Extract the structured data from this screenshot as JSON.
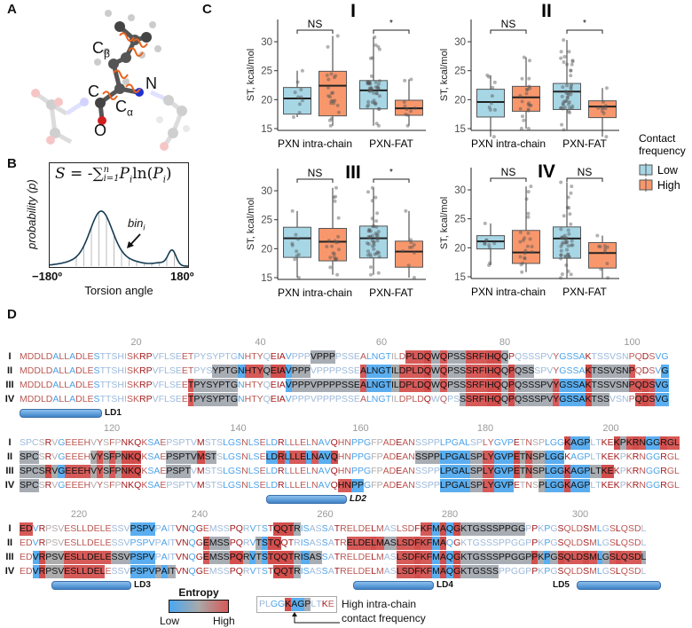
{
  "panel_labels": {
    "a": "A",
    "b": "B",
    "c": "C",
    "d": "D"
  },
  "panel_a": {
    "atoms": {
      "cb": "C",
      "cb_sub": "β",
      "c": "C",
      "ca": "C",
      "ca_sub": "α",
      "n": "N",
      "o": "O"
    },
    "colors": {
      "torsion": "#e8641e",
      "nitrogen": "#2030d0",
      "oxygen": "#d02020"
    }
  },
  "panel_b": {
    "formula": {
      "lhs": "S = -",
      "sum": "∑",
      "upper": "n",
      "lower": "i=1",
      "p1": "P",
      "s1": "i",
      "ln": "ln(",
      "p2": "P",
      "s2": "i",
      "close": ")"
    },
    "ylabel": "probability (p)",
    "xlabel": "Torsion angle",
    "xmin": "−180º",
    "xmax": "180º",
    "bin_label": "bin",
    "bin_sub": "i"
  },
  "chart_data": [
    {
      "type": "box",
      "title": "I",
      "ylabel": "ST, kcal/mol",
      "ylim": [
        14,
        33
      ],
      "yticks": [
        "15",
        "20",
        "25",
        "30"
      ],
      "categories": [
        "PXN intra-chain",
        "PXN-FAT"
      ],
      "significance": [
        "NS",
        "*"
      ],
      "series": [
        {
          "name": "Low",
          "boxes": [
            {
              "min": 17,
              "q1": 17.5,
              "median": 20.2,
              "q3": 22.1,
              "max": 25
            },
            {
              "min": 15.5,
              "q1": 18.4,
              "median": 21.6,
              "q3": 23.3,
              "max": 30.8
            }
          ]
        },
        {
          "name": "High",
          "boxes": [
            {
              "min": 15.5,
              "q1": 17.2,
              "median": 22.4,
              "q3": 24.9,
              "max": 31
            },
            {
              "min": 15.5,
              "q1": 17.3,
              "median": 18.5,
              "q3": 19.9,
              "max": 23.5
            }
          ]
        }
      ]
    },
    {
      "type": "box",
      "title": "II",
      "ylabel": "ST, kcal/mol",
      "ylim": [
        14,
        33
      ],
      "yticks": [
        "15",
        "20",
        "25",
        "30"
      ],
      "categories": [
        "PXN intra-chain",
        "PXN-FAT"
      ],
      "significance": [
        "NS",
        "*"
      ],
      "series": [
        {
          "name": "Low",
          "boxes": [
            {
              "min": 13.6,
              "q1": 17,
              "median": 19.6,
              "q3": 21.8,
              "max": 24.2
            },
            {
              "min": 14.8,
              "q1": 18.3,
              "median": 21.4,
              "q3": 22.8,
              "max": 30.3
            }
          ]
        },
        {
          "name": "High",
          "boxes": [
            {
              "min": 15,
              "q1": 18,
              "median": 20.4,
              "q3": 22.3,
              "max": 27.3
            },
            {
              "min": 13.6,
              "q1": 16.9,
              "median": 18.8,
              "q3": 19.8,
              "max": 22
            }
          ]
        }
      ]
    },
    {
      "type": "box",
      "title": "III",
      "ylabel": "ST, kcal/mol",
      "ylim": [
        14,
        33
      ],
      "yticks": [
        "15",
        "20",
        "25",
        "30"
      ],
      "categories": [
        "PXN intra-chain",
        "PXN-FAT"
      ],
      "significance": [
        "NS",
        "*"
      ],
      "series": [
        {
          "name": "Low",
          "boxes": [
            {
              "min": 15,
              "q1": 18.5,
              "median": 21.8,
              "q3": 23.7,
              "max": 26.5
            },
            {
              "min": 15.5,
              "q1": 18.4,
              "median": 21.8,
              "q3": 23.9,
              "max": 30.5
            }
          ]
        },
        {
          "name": "High",
          "boxes": [
            {
              "min": 15.5,
              "q1": 17.9,
              "median": 21.2,
              "q3": 23.5,
              "max": 30.5
            },
            {
              "min": 15,
              "q1": 16.8,
              "median": 19.5,
              "q3": 21.3,
              "max": 26.5
            }
          ]
        }
      ]
    },
    {
      "type": "box",
      "title": "IV",
      "ylabel": "ST, kcal/mol",
      "ylim": [
        14,
        33
      ],
      "yticks": [
        "15",
        "20",
        "25",
        "30"
      ],
      "categories": [
        "PXN intra-chain",
        "PXN-FAT"
      ],
      "significance": [
        "NS",
        "NS"
      ],
      "series": [
        {
          "name": "Low",
          "boxes": [
            {
              "min": 17,
              "q1": 19.8,
              "median": 21.1,
              "q3": 22.1,
              "max": 24.2
            },
            {
              "min": 14.8,
              "q1": 18.2,
              "median": 21.6,
              "q3": 23.6,
              "max": 31.3
            }
          ]
        },
        {
          "name": "High",
          "boxes": [
            {
              "min": 15.8,
              "q1": 17.3,
              "median": 19.2,
              "q3": 23,
              "max": 30.6
            },
            {
              "min": 14.8,
              "q1": 16.5,
              "median": 19.1,
              "q3": 20.9,
              "max": 22.1
            }
          ]
        }
      ]
    }
  ],
  "legend": {
    "title_line1": "Contact",
    "title_line2": "frequency",
    "items": [
      {
        "label": "Low",
        "color": "#a7d6e5"
      },
      {
        "label": "High",
        "color": "#f8976c"
      }
    ]
  },
  "panel_d": {
    "row_labels": [
      "I",
      "II",
      "III",
      "IV"
    ],
    "entropy_colors": {
      "b": "#4aa2ea",
      "l": "#9db9da",
      "g": "#b3aaaa",
      "r": "#bb5753",
      "R": "#a3181b"
    },
    "blocks": [
      {
        "start": 1,
        "sequence": "MDDLDALLADLESTTSHISKRPVFLSEETPYSYPTGNHTYQEIAVPPPVPPPPSSEALNGTILDPLDQWQPSSSRFIHQQPQSSSPVYGSSAKTSSVSNPQDSVG",
        "entropy": "rrrrrbrrbrrrblllllrrRRlllllrrlllllllbrrrlRRRblllllllllllrbbbbggrrrrRlrlllrrrrRRlRllllllrbbbbRllllllrrRrbbb",
        "ticks": [
          20,
          40,
          60,
          80,
          100
        ],
        "highlights": [
          [
            [
              49,
              52
            ],
            [
              65,
              80
            ]
          ],
          [
            [
              33,
              48
            ],
            [
              57,
              84
            ],
            [
              93,
              100
            ],
            [
              105,
              105
            ]
          ],
          [
            [
              29,
              36
            ],
            [
              45,
              105
            ]
          ],
          [
            [
              29,
              36
            ],
            [
              73,
              96
            ],
            [
              101,
              105
            ]
          ]
        ],
        "helices": [
          {
            "label": "LD1",
            "from": 1,
            "to": 13,
            "label_side": "right",
            "italic": false
          }
        ]
      },
      {
        "start": 106,
        "sequence": "SPCSRVGEEEHVYSFPNKQKSAEPSPTVMSTSLGSNLSELDRLLLELNAVQHNPPGFPADEANSSPPLPGALSPLYGVPETNSPLGGKAGPLTKEKPKRNGGRGL",
        "entropy": "lllgRgbrrrrgrgrgRRRrbbrlllllRlllbbbrbbrbbRbrrrbrbbRrrbbbggrrRrrllllbbbbbllrrbbbRgrggbbbRbbbllRRRlrRrbbRrr",
        "ticks": [
          120,
          140,
          160,
          180,
          200
        ],
        "highlights": [
          [
            [
              88,
              91
            ],
            [
              96,
              105
            ]
          ],
          [
            [
              1,
              3
            ],
            [
              12,
              19
            ],
            [
              24,
              31
            ],
            [
              40,
              51
            ],
            [
              64,
              87
            ]
          ],
          [
            [
              1,
              19
            ],
            [
              24,
              27
            ],
            [
              68,
              95
            ]
          ],
          [
            [
              1,
              3
            ],
            [
              52,
              55
            ],
            [
              68,
              79
            ],
            [
              84,
              91
            ]
          ]
        ],
        "helices": [
          {
            "label": "LD2",
            "from": 145,
            "to": 157,
            "label_side": "right",
            "italic": true
          }
        ]
      },
      {
        "start": 211,
        "sequence": "EDVRPSVESLLDELESSVPSPVPAITVNQGEMSSPQRVTSTQQTRISASSATRELDELMASLSDFKFMAQGKTGSSSPPGGPPKPGSQLDSMLGSLQSDL",
        "entropy": "rrbRgggrrrrrrrrlllbbbblbllRRbRrlllRRlblbRRRRlbbllblRrrrrrRrllrrrRrrbRbRlllllllllllRlblRrrrRrblrRrrr",
        "ticks": [
          220,
          240,
          260,
          280,
          300
        ],
        "highlights": [
          [
            [
              1,
              2
            ],
            [
              19,
              22
            ],
            [
              42,
              45
            ],
            [
              66,
              81
            ]
          ],
          [
            [
              31,
              34
            ],
            [
              39,
              42
            ],
            [
              54,
              69
            ]
          ],
          [
            [
              3,
              22
            ],
            [
              31,
              49
            ],
            [
              62,
              100
            ]
          ],
          [
            [
              3,
              14
            ],
            [
              19,
              26
            ],
            [
              42,
              45
            ],
            [
              62,
              77
            ]
          ]
        ],
        "helices": [
          {
            "label": "LD3",
            "from": 216,
            "to": 228,
            "label_side": "right",
            "italic": false
          },
          {
            "label": "LD4",
            "from": 265,
            "to": 277,
            "label_side": "right",
            "italic": false
          },
          {
            "label": "LD5",
            "from": 300,
            "to": 312,
            "label_side": "left",
            "italic": false
          }
        ]
      }
    ],
    "entropy_legend": {
      "title": "Entropy",
      "low": "Low",
      "high": "High"
    },
    "contact_example": {
      "sequence": "PLGGKAGPLTKE",
      "entropy": "llbbRbblllRr",
      "highlight": [
        5,
        8
      ],
      "label_line1": "High intra-chain",
      "label_line2": "contact frequency"
    }
  }
}
